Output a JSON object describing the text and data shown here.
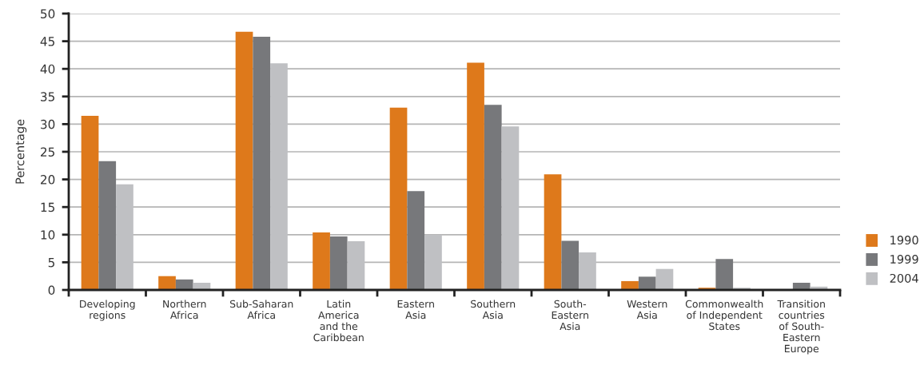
{
  "chart_data": {
    "type": "bar",
    "ylabel": "Percentage",
    "categories": [
      "Developing\nregions",
      "Northern\nAfrica",
      "Sub-Saharan\nAfrica",
      "Latin\nAmerica\nand the\nCaribbean",
      "Eastern\nAsia",
      "Southern\nAsia",
      "South-\nEastern\nAsia",
      "Western\nAsia",
      "Commonwealth\nof Independent\nStates",
      "Transition\ncountries\nof South-\nEastern\nEurope"
    ],
    "series": [
      {
        "name": "1990",
        "color": "#de791b",
        "values": [
          31.5,
          2.5,
          46.7,
          10.4,
          33.0,
          41.1,
          20.9,
          1.6,
          0.4,
          null
        ]
      },
      {
        "name": "1999",
        "color": "#77787b",
        "values": [
          23.3,
          1.9,
          45.8,
          9.7,
          17.9,
          33.5,
          8.9,
          2.4,
          5.6,
          1.3
        ]
      },
      {
        "name": "2004",
        "color": "#bfc0c3",
        "values": [
          19.1,
          1.3,
          41.0,
          8.8,
          10.0,
          29.6,
          6.8,
          3.8,
          0.4,
          0.6
        ]
      }
    ],
    "ylim": [
      0,
      50
    ],
    "yticks": [
      0,
      5,
      10,
      15,
      20,
      25,
      30,
      35,
      40,
      45,
      50
    ],
    "grid": "y",
    "legend": "right"
  }
}
